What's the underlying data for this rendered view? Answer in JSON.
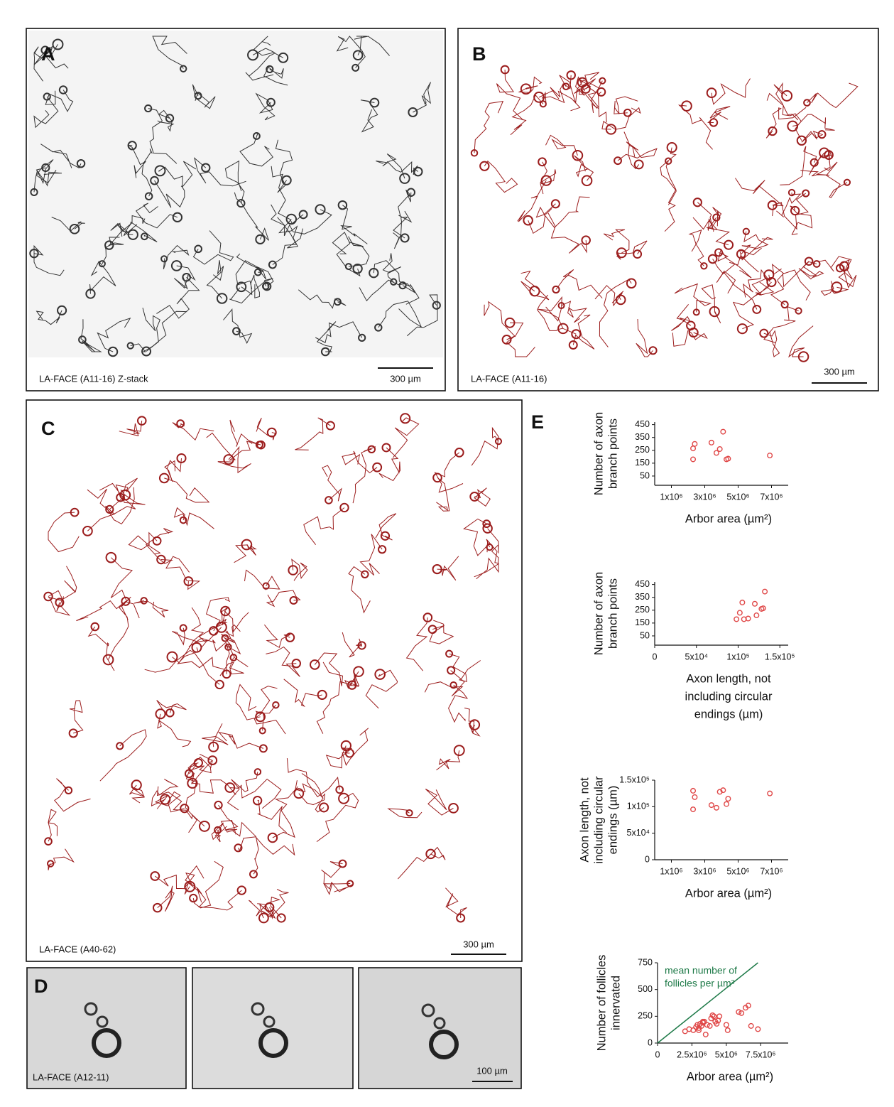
{
  "panels": {
    "A": {
      "letter": "A",
      "caption": "LA-FACE (A11-16)   Z-stack",
      "scale_bar": "300 µm"
    },
    "B": {
      "letter": "B",
      "caption": "LA-FACE (A11-16)",
      "scale_bar": "300 µm"
    },
    "C": {
      "letter": "C",
      "caption": "LA-FACE (A40-62)",
      "scale_bar": "300 µm"
    },
    "D": {
      "letter": "D",
      "caption": "LA-FACE (A12-11)",
      "scale_bar": "100 µm"
    },
    "E": {
      "letter": "E"
    }
  },
  "chart_data": [
    {
      "type": "scatter",
      "color": "#e04848",
      "xlabel": "Arbor area (µm²)",
      "ylabel": [
        "Number of axon",
        "branch points"
      ],
      "x": [
        2300000,
        2300000,
        2400000,
        3400000,
        3700000,
        3900000,
        4100000,
        4300000,
        4400000,
        6900000
      ],
      "y": [
        180,
        265,
        300,
        310,
        230,
        260,
        395,
        180,
        185,
        210
      ],
      "xlim": [
        0,
        8000000
      ],
      "ylim": [
        0,
        470
      ],
      "xticks": [
        {
          "value": 1000000,
          "label": "1x10⁶"
        },
        {
          "value": 3000000,
          "label": "3x10⁶"
        },
        {
          "value": 5000000,
          "label": "5x10⁶"
        },
        {
          "value": 7000000,
          "label": "7x10⁶"
        }
      ],
      "yticks": [
        50,
        150,
        250,
        350,
        450
      ]
    },
    {
      "type": "scatter",
      "color": "#e04848",
      "xlabel": [
        "Axon length, not",
        "including circular",
        "endings (µm)"
      ],
      "ylabel": [
        "Number of axon",
        "branch points"
      ],
      "x": [
        98000,
        102000,
        105000,
        107000,
        112000,
        120000,
        122000,
        128000,
        130000,
        132000
      ],
      "y": [
        180,
        230,
        310,
        180,
        185,
        300,
        210,
        260,
        265,
        395
      ],
      "xlim": [
        0,
        160000
      ],
      "ylim": [
        0,
        470
      ],
      "xticks": [
        0,
        {
          "value": 50000,
          "label": "5x10⁴"
        },
        {
          "value": 100000,
          "label": "1x10⁵"
        },
        {
          "value": 150000,
          "label": "1.5x10⁵"
        }
      ],
      "yticks": [
        50,
        150,
        250,
        350,
        450
      ]
    },
    {
      "type": "scatter",
      "color": "#e04848",
      "xlabel": "Arbor area (µm²)",
      "ylabel": [
        "Axon length, not",
        "including circular",
        "endings (µm)"
      ],
      "x": [
        2300000,
        2300000,
        2400000,
        3400000,
        3700000,
        3900000,
        4100000,
        4300000,
        4400000,
        6900000
      ],
      "y": [
        95000,
        130000,
        118000,
        103000,
        98000,
        128000,
        131000,
        105000,
        115000,
        125000
      ],
      "xlim": [
        0,
        8000000
      ],
      "ylim": [
        0,
        150000
      ],
      "xticks": [
        {
          "value": 1000000,
          "label": "1x10⁶"
        },
        {
          "value": 3000000,
          "label": "3x10⁶"
        },
        {
          "value": 5000000,
          "label": "5x10⁶"
        },
        {
          "value": 7000000,
          "label": "7x10⁶"
        }
      ],
      "yticks": [
        0,
        {
          "value": 50000,
          "label": "5x10⁴"
        },
        {
          "value": 100000,
          "label": "1x10⁵"
        },
        {
          "value": 150000,
          "label": "1.5x10⁵"
        }
      ]
    },
    {
      "type": "scatter",
      "color": "#e04848",
      "xlabel": "Arbor area (µm²)",
      "ylabel": [
        "Number of follicles",
        "innervated"
      ],
      "x": [
        2000000,
        2300000,
        2600000,
        2800000,
        2900000,
        3000000,
        3100000,
        3200000,
        3300000,
        3400000,
        3500000,
        3600000,
        3800000,
        3900000,
        4000000,
        4100000,
        4200000,
        4300000,
        4400000,
        4500000,
        5000000,
        5100000,
        5900000,
        6100000,
        6400000,
        6600000,
        6800000,
        7300000,
        3000000,
        3300000
      ],
      "y": [
        110,
        130,
        120,
        150,
        170,
        140,
        180,
        160,
        190,
        200,
        80,
        170,
        160,
        230,
        260,
        250,
        200,
        180,
        210,
        250,
        170,
        120,
        290,
        280,
        330,
        350,
        160,
        130,
        120,
        200
      ],
      "xlim": [
        0,
        9500000
      ],
      "ylim": [
        0,
        750
      ],
      "xticks": [
        0,
        {
          "value": 2500000,
          "label": "2.5x10⁶"
        },
        {
          "value": 5000000,
          "label": "5x10⁶"
        },
        {
          "value": 7500000,
          "label": "7.5x10⁶"
        }
      ],
      "yticks": [
        0,
        250,
        500,
        750
      ],
      "reference_line": {
        "label": [
          "mean number of",
          "follicles per µm²"
        ],
        "color": "#1e7a48",
        "x": [
          0,
          7300000
        ],
        "y": [
          0,
          750
        ]
      }
    }
  ]
}
